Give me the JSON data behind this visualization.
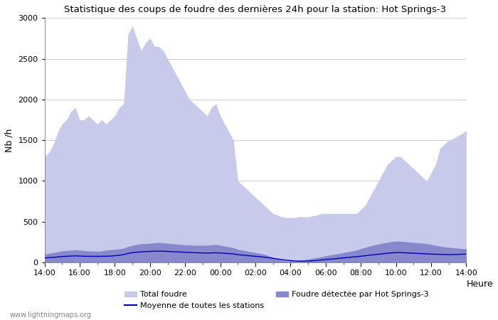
{
  "title": "Statistique des coups de foudre des dernières 24h pour la station: Hot Springs-3",
  "xlabel": "Heure",
  "ylabel": "Nb /h",
  "watermark": "www.lightningmaps.org",
  "ylim": [
    0,
    3000
  ],
  "x_tick_labels": [
    "14:00",
    "16:00",
    "18:00",
    "20:00",
    "22:00",
    "00:00",
    "02:00",
    "04:00",
    "06:00",
    "08:00",
    "10:00",
    "12:00",
    "14:00"
  ],
  "total_foudre_color": "#c8caec",
  "detected_color": "#8888cc",
  "moyenne_color": "#0000bb",
  "n_points": 97,
  "total_foudre": [
    1300,
    1350,
    1450,
    1600,
    1700,
    1750,
    1850,
    1900,
    1750,
    1750,
    1800,
    1750,
    1700,
    1750,
    1700,
    1750,
    1800,
    1900,
    1950,
    2800,
    2900,
    2750,
    2600,
    2700,
    2750,
    2650,
    2650,
    2600,
    2500,
    2400,
    2300,
    2200,
    2100,
    2000,
    1950,
    1900,
    1850,
    1800,
    1900,
    1950,
    1800,
    1700,
    1600,
    1500,
    1000,
    950,
    900,
    850,
    800,
    750,
    700,
    650,
    600,
    580,
    560,
    550,
    550,
    550,
    560,
    560,
    560,
    570,
    580,
    600,
    600,
    600,
    600,
    600,
    600,
    600,
    600,
    600,
    650,
    700,
    800,
    900,
    1000,
    1100,
    1200,
    1250,
    1300,
    1300,
    1250,
    1200,
    1150,
    1100,
    1050,
    1000,
    1100,
    1200,
    1400,
    1450,
    1500,
    1520,
    1550,
    1580,
    1620
  ],
  "detected_foudre": [
    100,
    110,
    120,
    130,
    140,
    145,
    150,
    155,
    150,
    145,
    140,
    140,
    135,
    140,
    150,
    155,
    160,
    165,
    175,
    195,
    210,
    220,
    230,
    230,
    235,
    240,
    245,
    240,
    235,
    230,
    225,
    220,
    215,
    215,
    210,
    210,
    210,
    210,
    215,
    220,
    210,
    200,
    190,
    180,
    160,
    150,
    140,
    130,
    120,
    110,
    100,
    80,
    60,
    40,
    30,
    20,
    20,
    20,
    25,
    30,
    40,
    50,
    60,
    70,
    80,
    90,
    100,
    110,
    120,
    130,
    140,
    150,
    170,
    185,
    200,
    215,
    225,
    235,
    245,
    255,
    260,
    260,
    255,
    250,
    245,
    240,
    235,
    230,
    220,
    210,
    200,
    190,
    185,
    180,
    175,
    170,
    165
  ],
  "moyenne": [
    55,
    58,
    62,
    67,
    72,
    75,
    78,
    80,
    78,
    76,
    75,
    75,
    74,
    75,
    76,
    78,
    82,
    88,
    96,
    110,
    120,
    125,
    130,
    132,
    135,
    137,
    138,
    137,
    135,
    132,
    130,
    127,
    124,
    122,
    120,
    118,
    116,
    115,
    116,
    118,
    115,
    112,
    108,
    104,
    95,
    90,
    85,
    80,
    75,
    70,
    65,
    58,
    50,
    42,
    35,
    28,
    22,
    18,
    16,
    16,
    17,
    20,
    24,
    30,
    35,
    40,
    45,
    50,
    55,
    60,
    65,
    70,
    76,
    82,
    88,
    95,
    100,
    106,
    112,
    117,
    120,
    120,
    118,
    115,
    113,
    110,
    108,
    105,
    102,
    100,
    98,
    97,
    96,
    97,
    98,
    100,
    102
  ]
}
